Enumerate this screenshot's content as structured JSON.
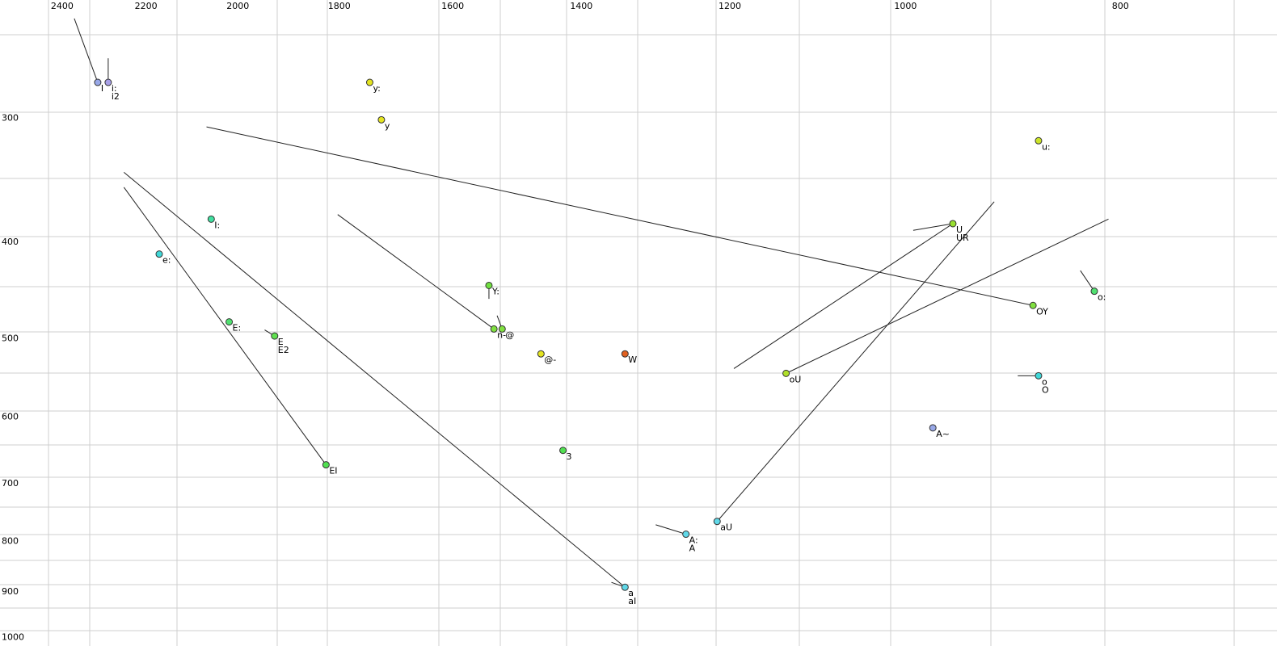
{
  "chart_data": {
    "type": "scatter",
    "log_scale": true,
    "xlim": [
      2560,
      680
    ],
    "ylim": [
      228,
      1020
    ],
    "xticks": [
      2400,
      2200,
      2000,
      1800,
      1600,
      1400,
      1200,
      1000,
      800
    ],
    "yticks": [
      300,
      400,
      500,
      600,
      700,
      800,
      900,
      1000
    ],
    "points": [
      {
        "label": "I",
        "f2": 2313,
        "f1": 276,
        "color": "#98a8e8",
        "trail": [
          2370,
          238
        ]
      },
      {
        "label": "i:",
        "f2": 2288,
        "f1": 276,
        "color": "#a8a0e8",
        "trail": [
          2288,
          261
        ]
      },
      {
        "label": "i2",
        "f2": 2288,
        "f1": 276,
        "color": "#a8a0e8"
      },
      {
        "label": "y:",
        "f2": 1744,
        "f1": 276,
        "color": "#e4e420"
      },
      {
        "label": "y",
        "f2": 1723,
        "f1": 301,
        "color": "#e4e420"
      },
      {
        "label": "u:",
        "f2": 871,
        "f1": 316,
        "color": "#cce428"
      },
      {
        "label": "I:",
        "f2": 2056,
        "f1": 379,
        "color": "#40e0a0"
      },
      {
        "label": "e:",
        "f2": 2170,
        "f1": 411,
        "color": "#40d8d8"
      },
      {
        "label": "U",
        "f2": 952,
        "f1": 383,
        "color": "#98e030",
        "trail": [
          992,
          389
        ]
      },
      {
        "label": "UR",
        "f2": 952,
        "f1": 383,
        "color": "#98e030",
        "trail": [
          1195,
          536
        ]
      },
      {
        "label": "Y:",
        "f2": 1541,
        "f1": 442,
        "color": "#70e040",
        "trail": [
          1541,
          456
        ]
      },
      {
        "label": "o:",
        "f2": 822,
        "f1": 448,
        "color": "#50e070",
        "trail": [
          834,
          427
        ]
      },
      {
        "label": "OY",
        "f2": 876,
        "f1": 463,
        "color": "#80e040",
        "trail": [
          2066,
          306
        ]
      },
      {
        "label": "E:",
        "f2": 2018,
        "f1": 481,
        "color": "#50e070"
      },
      {
        "label": "E",
        "f2": 1925,
        "f1": 497,
        "color": "#60e050",
        "trail": [
          1945,
          490
        ]
      },
      {
        "label": "E2",
        "f2": 1925,
        "f1": 497,
        "color": "#60e050"
      },
      {
        "label": "n-",
        "f2": 1533,
        "f1": 489,
        "color": "#80e040",
        "trail": [
          1803,
          375
        ]
      },
      {
        "label": "@",
        "f2": 1520,
        "f1": 489,
        "color": "#80e040",
        "trail": [
          1528,
          474
        ]
      },
      {
        "label": "@-",
        "f2": 1460,
        "f1": 518,
        "color": "#e4e420"
      },
      {
        "label": "W",
        "f2": 1338,
        "f1": 518,
        "color": "#e06020"
      },
      {
        "label": "oU",
        "f2": 1132,
        "f1": 542,
        "color": "#b0e028",
        "trail": [
          810,
          379
        ]
      },
      {
        "label": "o",
        "f2": 871,
        "f1": 545,
        "color": "#40d8d8",
        "trail": [
          890,
          545
        ]
      },
      {
        "label": "O",
        "f2": 871,
        "f1": 545,
        "color": "#40d8d8"
      },
      {
        "label": "A~",
        "f2": 972,
        "f1": 615,
        "color": "#98a8e8"
      },
      {
        "label": "3",
        "f2": 1427,
        "f1": 648,
        "color": "#50e050"
      },
      {
        "label": "EI",
        "f2": 1825,
        "f1": 670,
        "color": "#50e050",
        "trail": [
          2251,
          352
        ]
      },
      {
        "label": "aU",
        "f2": 1216,
        "f1": 764,
        "color": "#60d8e8",
        "trail": [
          912,
          364
        ]
      },
      {
        "label": "A:",
        "f2": 1256,
        "f1": 787,
        "color": "#60d8e8",
        "trail": [
          1296,
          770
        ]
      },
      {
        "label": "A",
        "f2": 1256,
        "f1": 787,
        "color": "#60d8e8"
      },
      {
        "label": "a",
        "f2": 1338,
        "f1": 890,
        "color": "#60d8e8",
        "trail": [
          1357,
          880
        ]
      },
      {
        "label": "aI",
        "f2": 1338,
        "f1": 890,
        "color": "#60d8e8",
        "trail": [
          2251,
          340
        ]
      }
    ]
  }
}
